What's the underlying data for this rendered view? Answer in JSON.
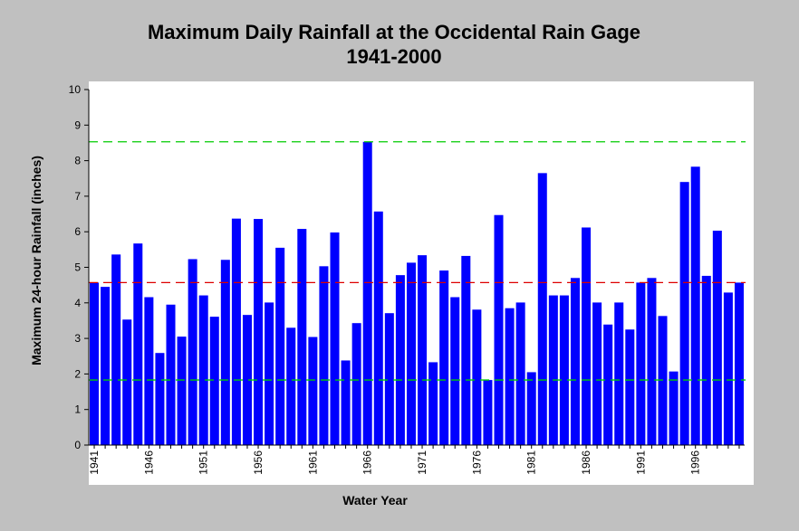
{
  "chart_data": {
    "type": "bar",
    "title": "Maximum Daily Rainfall at the Occidental Rain Gage",
    "subtitle": "1941-2000",
    "xlabel": "Water Year",
    "ylabel": "Maximum 24-hour Rainfall (inches)",
    "ylim": [
      0,
      10
    ],
    "yticks": [
      "0",
      "1",
      "2",
      "3",
      "4",
      "5",
      "6",
      "7",
      "8",
      "9",
      "10"
    ],
    "grid": false,
    "x": [
      1941,
      1942,
      1943,
      1944,
      1945,
      1946,
      1947,
      1948,
      1949,
      1950,
      1951,
      1952,
      1953,
      1954,
      1955,
      1956,
      1957,
      1958,
      1959,
      1960,
      1961,
      1962,
      1963,
      1964,
      1965,
      1966,
      1967,
      1968,
      1969,
      1970,
      1971,
      1972,
      1973,
      1974,
      1975,
      1976,
      1977,
      1978,
      1979,
      1980,
      1981,
      1982,
      1983,
      1984,
      1985,
      1986,
      1987,
      1988,
      1989,
      1990,
      1991,
      1992,
      1993,
      1994,
      1995,
      1996,
      1997,
      1998,
      1999,
      2000
    ],
    "xtick_labels": [
      "1941",
      "1946",
      "1951",
      "1956",
      "1961",
      "1966",
      "1971",
      "1976",
      "1981",
      "1986",
      "1991",
      "1996"
    ],
    "values": [
      4.57,
      4.45,
      5.36,
      3.53,
      5.67,
      4.16,
      2.59,
      3.95,
      3.05,
      5.23,
      4.21,
      3.61,
      5.21,
      6.37,
      3.66,
      6.36,
      4.01,
      5.55,
      3.3,
      6.08,
      3.04,
      5.03,
      5.98,
      2.38,
      3.43,
      8.53,
      6.57,
      3.71,
      4.78,
      5.13,
      5.34,
      2.33,
      4.91,
      4.16,
      5.32,
      3.81,
      1.83,
      6.47,
      3.85,
      4.01,
      2.05,
      7.65,
      4.21,
      4.21,
      4.7,
      6.12,
      4.01,
      3.39,
      4.01,
      3.25,
      4.57,
      4.7,
      3.63,
      2.07,
      7.4,
      7.83,
      4.76,
      6.03,
      4.29,
      4.57
    ],
    "reference_lines": [
      {
        "value": 8.53,
        "color": "#00cc00"
      },
      {
        "value": 4.57,
        "color": "#dd0000"
      },
      {
        "value": 1.83,
        "color": "#00cc00"
      }
    ],
    "bar_color": "#0000ff"
  }
}
